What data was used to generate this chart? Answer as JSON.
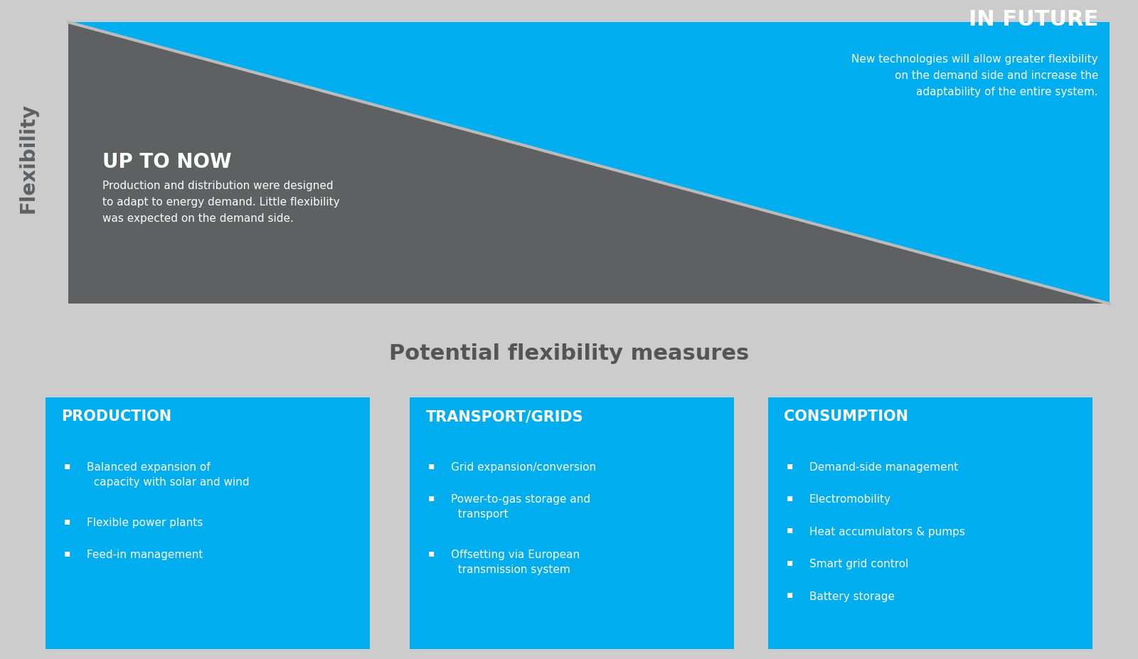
{
  "bg_color": "#cccccc",
  "gray_triangle_color": "#5f6062",
  "blue_color": "#00aeef",
  "separator_color": "#1a1a1a",
  "white": "#ffffff",
  "title_text": "Potential flexibility measures",
  "title_color": "#555555",
  "flex_label": "Flexibility",
  "top_title_left": "UP TO NOW",
  "top_body_left": "Production and distribution were designed\nto adapt to energy demand. Little flexibility\nwas expected on the demand side.",
  "top_title_right": "IN FUTURE",
  "top_body_right": "New technologies will allow greater flexibility\non the demand side and increase the\nadaptability of the entire system.",
  "boxes": [
    {
      "title": "PRODUCTION",
      "items": [
        "Balanced expansion of\n  capacity with solar and wind",
        "Flexible power plants",
        "Feed-in management"
      ]
    },
    {
      "title": "TRANSPORT/GRIDS",
      "items": [
        "Grid expansion/conversion",
        "Power-to-gas storage and\n  transport",
        "Offsetting via European\n  transmission system"
      ]
    },
    {
      "title": "CONSUMPTION",
      "items": [
        "Demand-side management",
        "Electromobility",
        "Heat accumulators & pumps",
        "Smart grid control",
        "Battery storage"
      ]
    }
  ]
}
